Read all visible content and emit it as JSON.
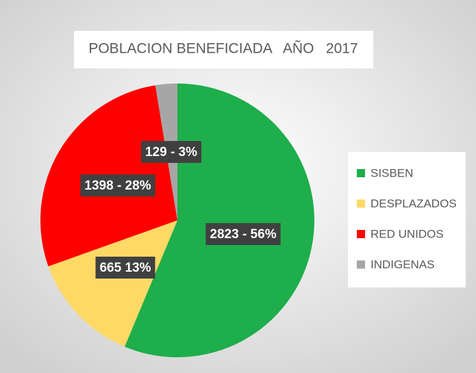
{
  "chart_data": {
    "type": "pie",
    "title": "POBLACION BENEFICIADA   AÑO   2017",
    "categories": [
      "SISBEN",
      "DESPLAZADOS",
      "RED UNIDOS",
      "INDIGENAS"
    ],
    "values": [
      2823,
      665,
      1398,
      129
    ],
    "value_labels": [
      "2823 - 56%",
      "665 13%",
      "1398 - 28%",
      "129 - 3%"
    ],
    "colors": [
      "#1eae4b",
      "#ffd966",
      "#ff0000",
      "#a6a6a6"
    ],
    "legend": "right"
  }
}
